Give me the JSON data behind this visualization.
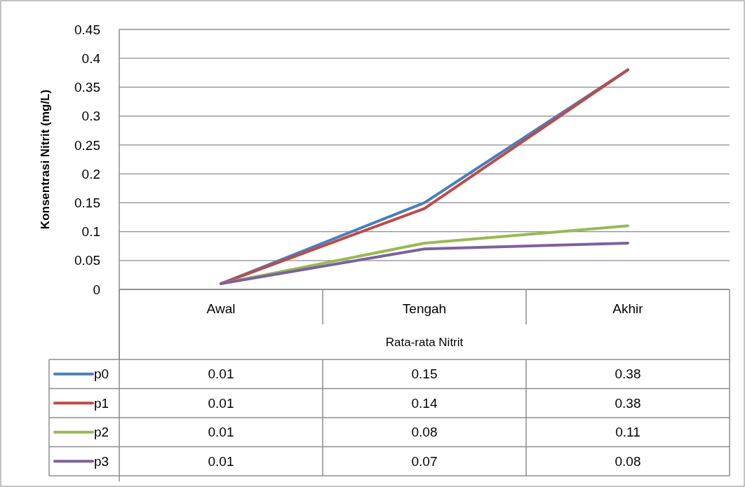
{
  "chart_data": {
    "type": "line",
    "xlabel": "Rata-rata Nitrit",
    "ylabel": "Konsentrasi Nitrit (mg/L)",
    "categories": [
      "Awal",
      "Tengah",
      "Akhir"
    ],
    "series": [
      {
        "name": "p0",
        "color": "#4a7ebb",
        "values": [
          0.01,
          0.15,
          0.38
        ]
      },
      {
        "name": "p1",
        "color": "#be4b48",
        "values": [
          0.01,
          0.14,
          0.38
        ]
      },
      {
        "name": "p2",
        "color": "#98b954",
        "values": [
          0.01,
          0.08,
          0.11
        ]
      },
      {
        "name": "p3",
        "color": "#7d60a0",
        "values": [
          0.01,
          0.07,
          0.08
        ]
      }
    ],
    "ylim": [
      0,
      0.45
    ],
    "yticks": [
      0,
      0.05,
      0.1,
      0.15,
      0.2,
      0.25,
      0.3,
      0.35,
      0.4,
      0.45
    ],
    "grid": "y",
    "legend": "bottom",
    "data_labels": true,
    "marker": "none",
    "line_style": "solid"
  }
}
